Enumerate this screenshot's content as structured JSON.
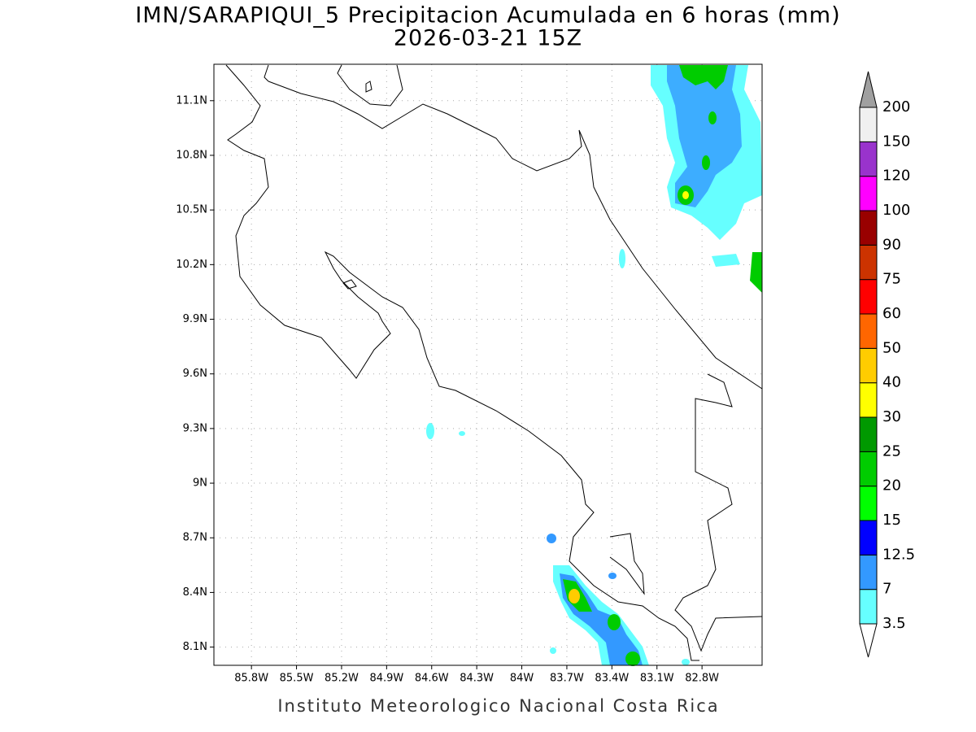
{
  "map": {
    "title": "IMN/SARAPIQUI_5 Precipitacion Acumulada en 6 horas (mm)",
    "subtitle": "2026-03-21 15Z",
    "footer": "Instituto Meteorologico Nacional Costa Rica",
    "xlim": [
      -86.05,
      -82.4
    ],
    "ylim": [
      8.0,
      11.3
    ],
    "grid": true,
    "xticks": [
      {
        "value": -85.8,
        "label": "85.8W"
      },
      {
        "value": -85.5,
        "label": "85.5W"
      },
      {
        "value": -85.2,
        "label": "85.2W"
      },
      {
        "value": -84.9,
        "label": "84.9W"
      },
      {
        "value": -84.6,
        "label": "84.6W"
      },
      {
        "value": -84.3,
        "label": "84.3W"
      },
      {
        "value": -84.0,
        "label": "84W"
      },
      {
        "value": -83.7,
        "label": "83.7W"
      },
      {
        "value": -83.4,
        "label": "83.4W"
      },
      {
        "value": -83.1,
        "label": "83.1W"
      },
      {
        "value": -82.8,
        "label": "82.8W"
      }
    ],
    "yticks": [
      {
        "value": 8.1,
        "label": "8.1N"
      },
      {
        "value": 8.4,
        "label": "8.4N"
      },
      {
        "value": 8.7,
        "label": "8.7N"
      },
      {
        "value": 9.0,
        "label": "9N"
      },
      {
        "value": 9.3,
        "label": "9.3N"
      },
      {
        "value": 9.6,
        "label": "9.6N"
      },
      {
        "value": 9.9,
        "label": "9.9N"
      },
      {
        "value": 10.2,
        "label": "10.2N"
      },
      {
        "value": 10.5,
        "label": "10.5N"
      },
      {
        "value": 10.8,
        "label": "10.8N"
      },
      {
        "value": 11.1,
        "label": "11.1N"
      }
    ],
    "colorbar": {
      "levels": [
        3.5,
        7,
        12.5,
        15,
        20,
        25,
        30,
        40,
        50,
        60,
        75,
        90,
        100,
        120,
        150,
        200
      ],
      "colors": [
        "#ffffff",
        "#66ffff",
        "#3399ff",
        "#0000ff",
        "#00ff00",
        "#00cc00",
        "#009900",
        "#ffff00",
        "#ffcc00",
        "#ff6600",
        "#ff0000",
        "#cc3300",
        "#990000",
        "#ff00ff",
        "#9933cc",
        "#f0f0f0",
        "#a0a0a0"
      ]
    }
  }
}
